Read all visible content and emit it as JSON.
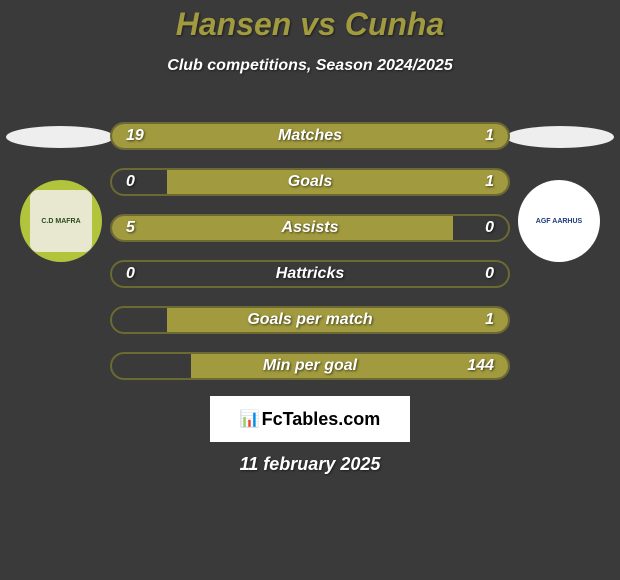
{
  "background_color": "#3a3a3a",
  "title": "Hansen vs Cunha",
  "title_color": "#a19a3e",
  "subtitle": "Club competitions, Season 2024/2025",
  "subtitle_color": "#ffffff",
  "oval_color": "#eeeeee",
  "badge_left": {
    "ring_color": "#b1c43c",
    "inner_bg": "#e8e8d0",
    "label": "C.D MAFRA"
  },
  "badge_right": {
    "ring_color": "#ffffff",
    "inner_bg": "#ffffff",
    "label": "AGF AARHUS"
  },
  "stats": {
    "bar_border_color": "#6d6932",
    "bar_bg_color": "#3a3a3a",
    "fill_color": "#a19a3e",
    "text_color": "#ffffff",
    "rows": [
      {
        "label": "Matches",
        "left_val": "19",
        "right_val": "1",
        "left_pct": 95,
        "right_pct": 5
      },
      {
        "label": "Goals",
        "left_val": "0",
        "right_val": "1",
        "left_pct": 0,
        "right_pct": 86
      },
      {
        "label": "Assists",
        "left_val": "5",
        "right_val": "0",
        "left_pct": 86,
        "right_pct": 0
      },
      {
        "label": "Hattricks",
        "left_val": "0",
        "right_val": "0",
        "left_pct": 0,
        "right_pct": 0
      },
      {
        "label": "Goals per match",
        "left_val": "",
        "right_val": "1",
        "left_pct": 0,
        "right_pct": 86
      },
      {
        "label": "Min per goal",
        "left_val": "",
        "right_val": "144",
        "left_pct": 0,
        "right_pct": 80
      }
    ]
  },
  "watermark": {
    "text": "FcTables.com",
    "icon": "📊"
  },
  "date": "11 february 2025",
  "date_color": "#ffffff"
}
